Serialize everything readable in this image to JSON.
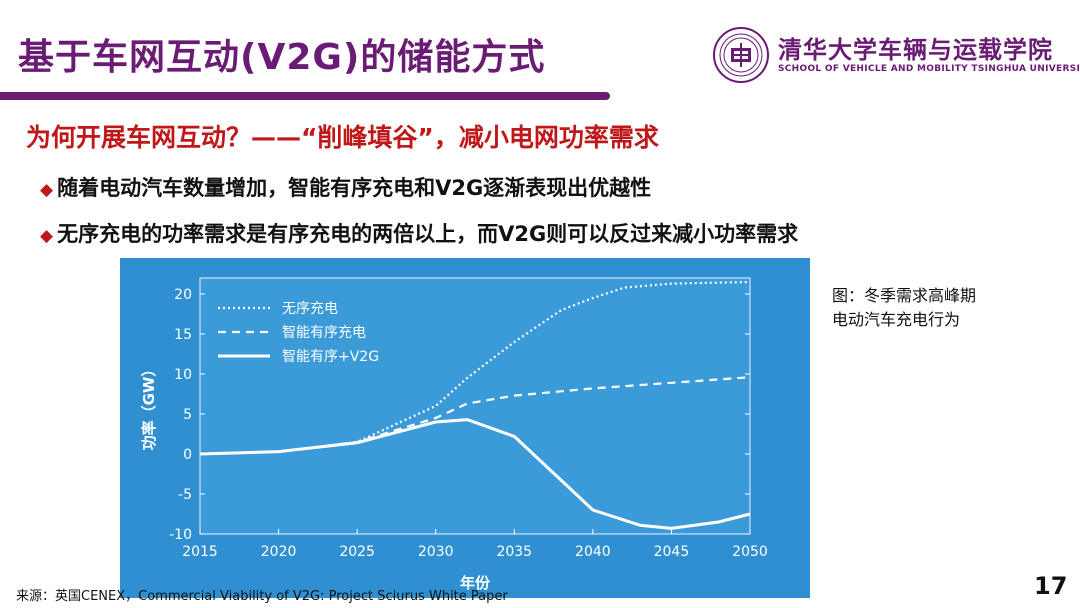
{
  "slide": {
    "title": "基于车网互动(V2G)的储能方式",
    "university_cn": "清华大学车辆与运载学院",
    "university_en": "SCHOOL OF VEHICLE AND MOBILITY TSINGHUA UNIVERSITY",
    "question": "为何开展车网互动？——“削峰填谷”，减小电网功率需求",
    "bullets": [
      "随着电动汽车数量增加，智能有序充电和V2G逐渐表现出优越性",
      "无序充电的功率需求是有序充电的两倍以上，而V2G则可以反过来减小功率需求"
    ],
    "caption_line1": "图：冬季需求高峰期",
    "caption_line2": "电动汽车充电行为",
    "source": "来源：英国CENEX，Commercial Viability of V2G: Project Sciurus White Paper",
    "page_number": "17"
  },
  "colors": {
    "brand": "#6a1b74",
    "accent_red": "#c01818",
    "chart_bg": "#3b9ad8",
    "chart_outer": "#2f8fd0"
  },
  "chart_data": {
    "type": "line",
    "title": "",
    "xlabel": "年份",
    "ylabel": "功率（GW）",
    "xlim": [
      2015,
      2050
    ],
    "ylim": [
      -10,
      22
    ],
    "x_ticks": [
      "2015",
      "2020",
      "2025",
      "2030",
      "2035",
      "2040",
      "2045",
      "2050"
    ],
    "y_ticks": [
      "20",
      "15",
      "10",
      "5",
      "0",
      "-5",
      "-10"
    ],
    "legend_position": "top-left",
    "series": [
      {
        "name": "无序充电",
        "style": "dotted",
        "x": [
          2015,
          2020,
          2025,
          2030,
          2032,
          2035,
          2038,
          2040,
          2042,
          2045,
          2050
        ],
        "y": [
          0,
          0.3,
          1.5,
          6,
          9.5,
          14,
          18,
          19.5,
          20.8,
          21.3,
          21.5
        ]
      },
      {
        "name": "智能有序充电",
        "style": "dashed",
        "x": [
          2015,
          2020,
          2025,
          2030,
          2032,
          2035,
          2040,
          2045,
          2050
        ],
        "y": [
          0,
          0.3,
          1.5,
          4.5,
          6.3,
          7.3,
          8.2,
          8.9,
          9.6
        ]
      },
      {
        "name": "智能有序+V2G",
        "style": "solid",
        "x": [
          2015,
          2020,
          2025,
          2030,
          2032,
          2035,
          2040,
          2043,
          2045,
          2048,
          2050
        ],
        "y": [
          0,
          0.3,
          1.4,
          4,
          4.3,
          2.2,
          -7,
          -8.9,
          -9.3,
          -8.5,
          -7.5
        ]
      }
    ]
  }
}
